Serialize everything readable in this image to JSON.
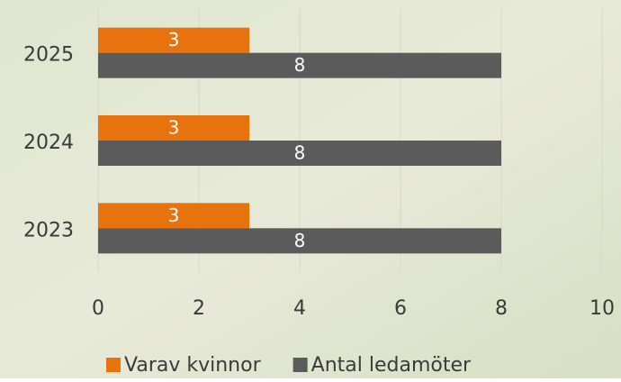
{
  "chart_data": {
    "type": "bar",
    "orientation": "horizontal",
    "categories": [
      "2025",
      "2024",
      "2023"
    ],
    "series": [
      {
        "name": "Varav kvinnor",
        "color": "#e8720c",
        "values": [
          3,
          3,
          3
        ]
      },
      {
        "name": "Antal ledamöter",
        "color": "#5b5b5b",
        "values": [
          8,
          8,
          8
        ]
      }
    ],
    "xlim": [
      0,
      10
    ],
    "xticks": [
      0,
      2,
      4,
      6,
      8,
      10
    ],
    "grid": true,
    "legend": "bottom"
  }
}
